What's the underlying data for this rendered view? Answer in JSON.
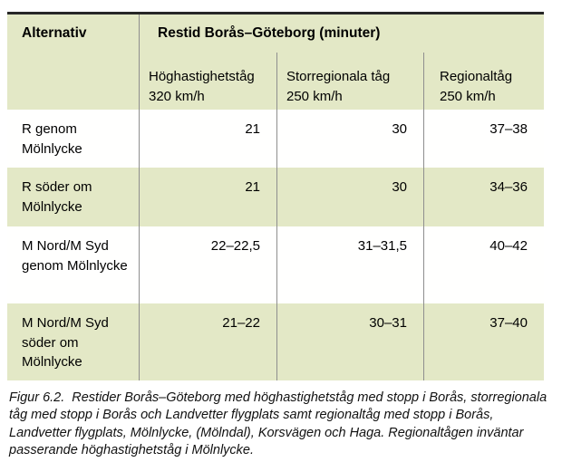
{
  "table": {
    "header": {
      "col1": "Alternativ",
      "title": "Restid Borås–Göteborg (minuter)",
      "columns": [
        {
          "name": "Höghastighetståg",
          "speed": "320 km/h"
        },
        {
          "name": "Storregionala tåg",
          "speed": "250 km/h"
        },
        {
          "name": "Regionaltåg",
          "speed": "250 km/h"
        }
      ]
    },
    "rows": [
      {
        "label": "R genom Mölnlycke",
        "hst": "21",
        "storregional": "30",
        "regional": "37–38"
      },
      {
        "label": "R söder om Mölnlycke",
        "hst": "21",
        "storregional": "30",
        "regional": "34–36"
      },
      {
        "label": "M Nord/M Syd genom Mölnlycke",
        "hst": "22–22,5",
        "storregional": "31–31,5",
        "regional": "40–42"
      },
      {
        "label": "M Nord/M Syd söder om Mölnlycke",
        "hst": "21–22",
        "storregional": "30–31",
        "regional": "37–40"
      }
    ]
  },
  "caption": {
    "label": "Figur 6.2.",
    "text": "Restider Borås–Göteborg med höghastighetståg med stopp i Borås, storregionala tåg med stopp i Borås och Landvetter flygplats samt regionaltåg med stopp i Borås, Landvetter flygplats, Mölnlycke, (Mölndal), Korsvägen och Haga. Regionaltågen inväntar passerande höghastighetståg i Mölnlycke."
  },
  "colors": {
    "row_green": "#e3e8c6",
    "divider_gray": "#8e8e8e",
    "top_border": "#272727"
  }
}
